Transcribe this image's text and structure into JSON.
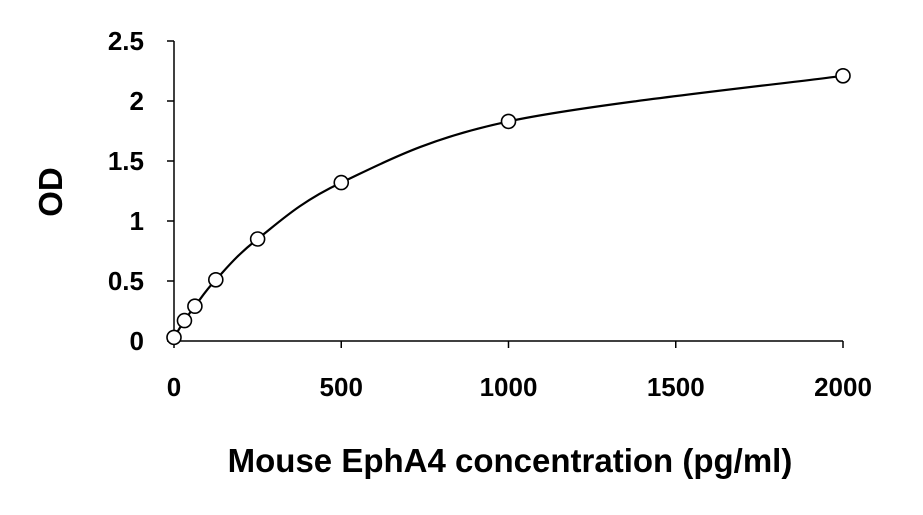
{
  "chart_data": {
    "type": "scatter",
    "title": "",
    "xlabel": "Mouse EphA4 concentration (pg/ml)",
    "ylabel": "OD",
    "xlim": [
      0,
      2000
    ],
    "ylim": [
      0,
      2.5
    ],
    "x_ticks": [
      "0",
      "500",
      "1000",
      "1500",
      "2000"
    ],
    "y_ticks": [
      "0",
      "0.5",
      "1",
      "1.5",
      "2",
      "2.5"
    ],
    "grid": false,
    "legend": "none",
    "fit_line": "smooth curve through points",
    "series": [
      {
        "x": [
          0,
          31.25,
          62.5,
          125,
          250,
          500,
          1000,
          2000
        ],
        "y": [
          0.03,
          0.17,
          0.29,
          0.51,
          0.85,
          1.32,
          1.83,
          2.21
        ]
      }
    ],
    "colors": {
      "line": "#000000",
      "marker_fill": "#ffffff",
      "marker_stroke": "#000000",
      "axis": "#000000"
    }
  }
}
